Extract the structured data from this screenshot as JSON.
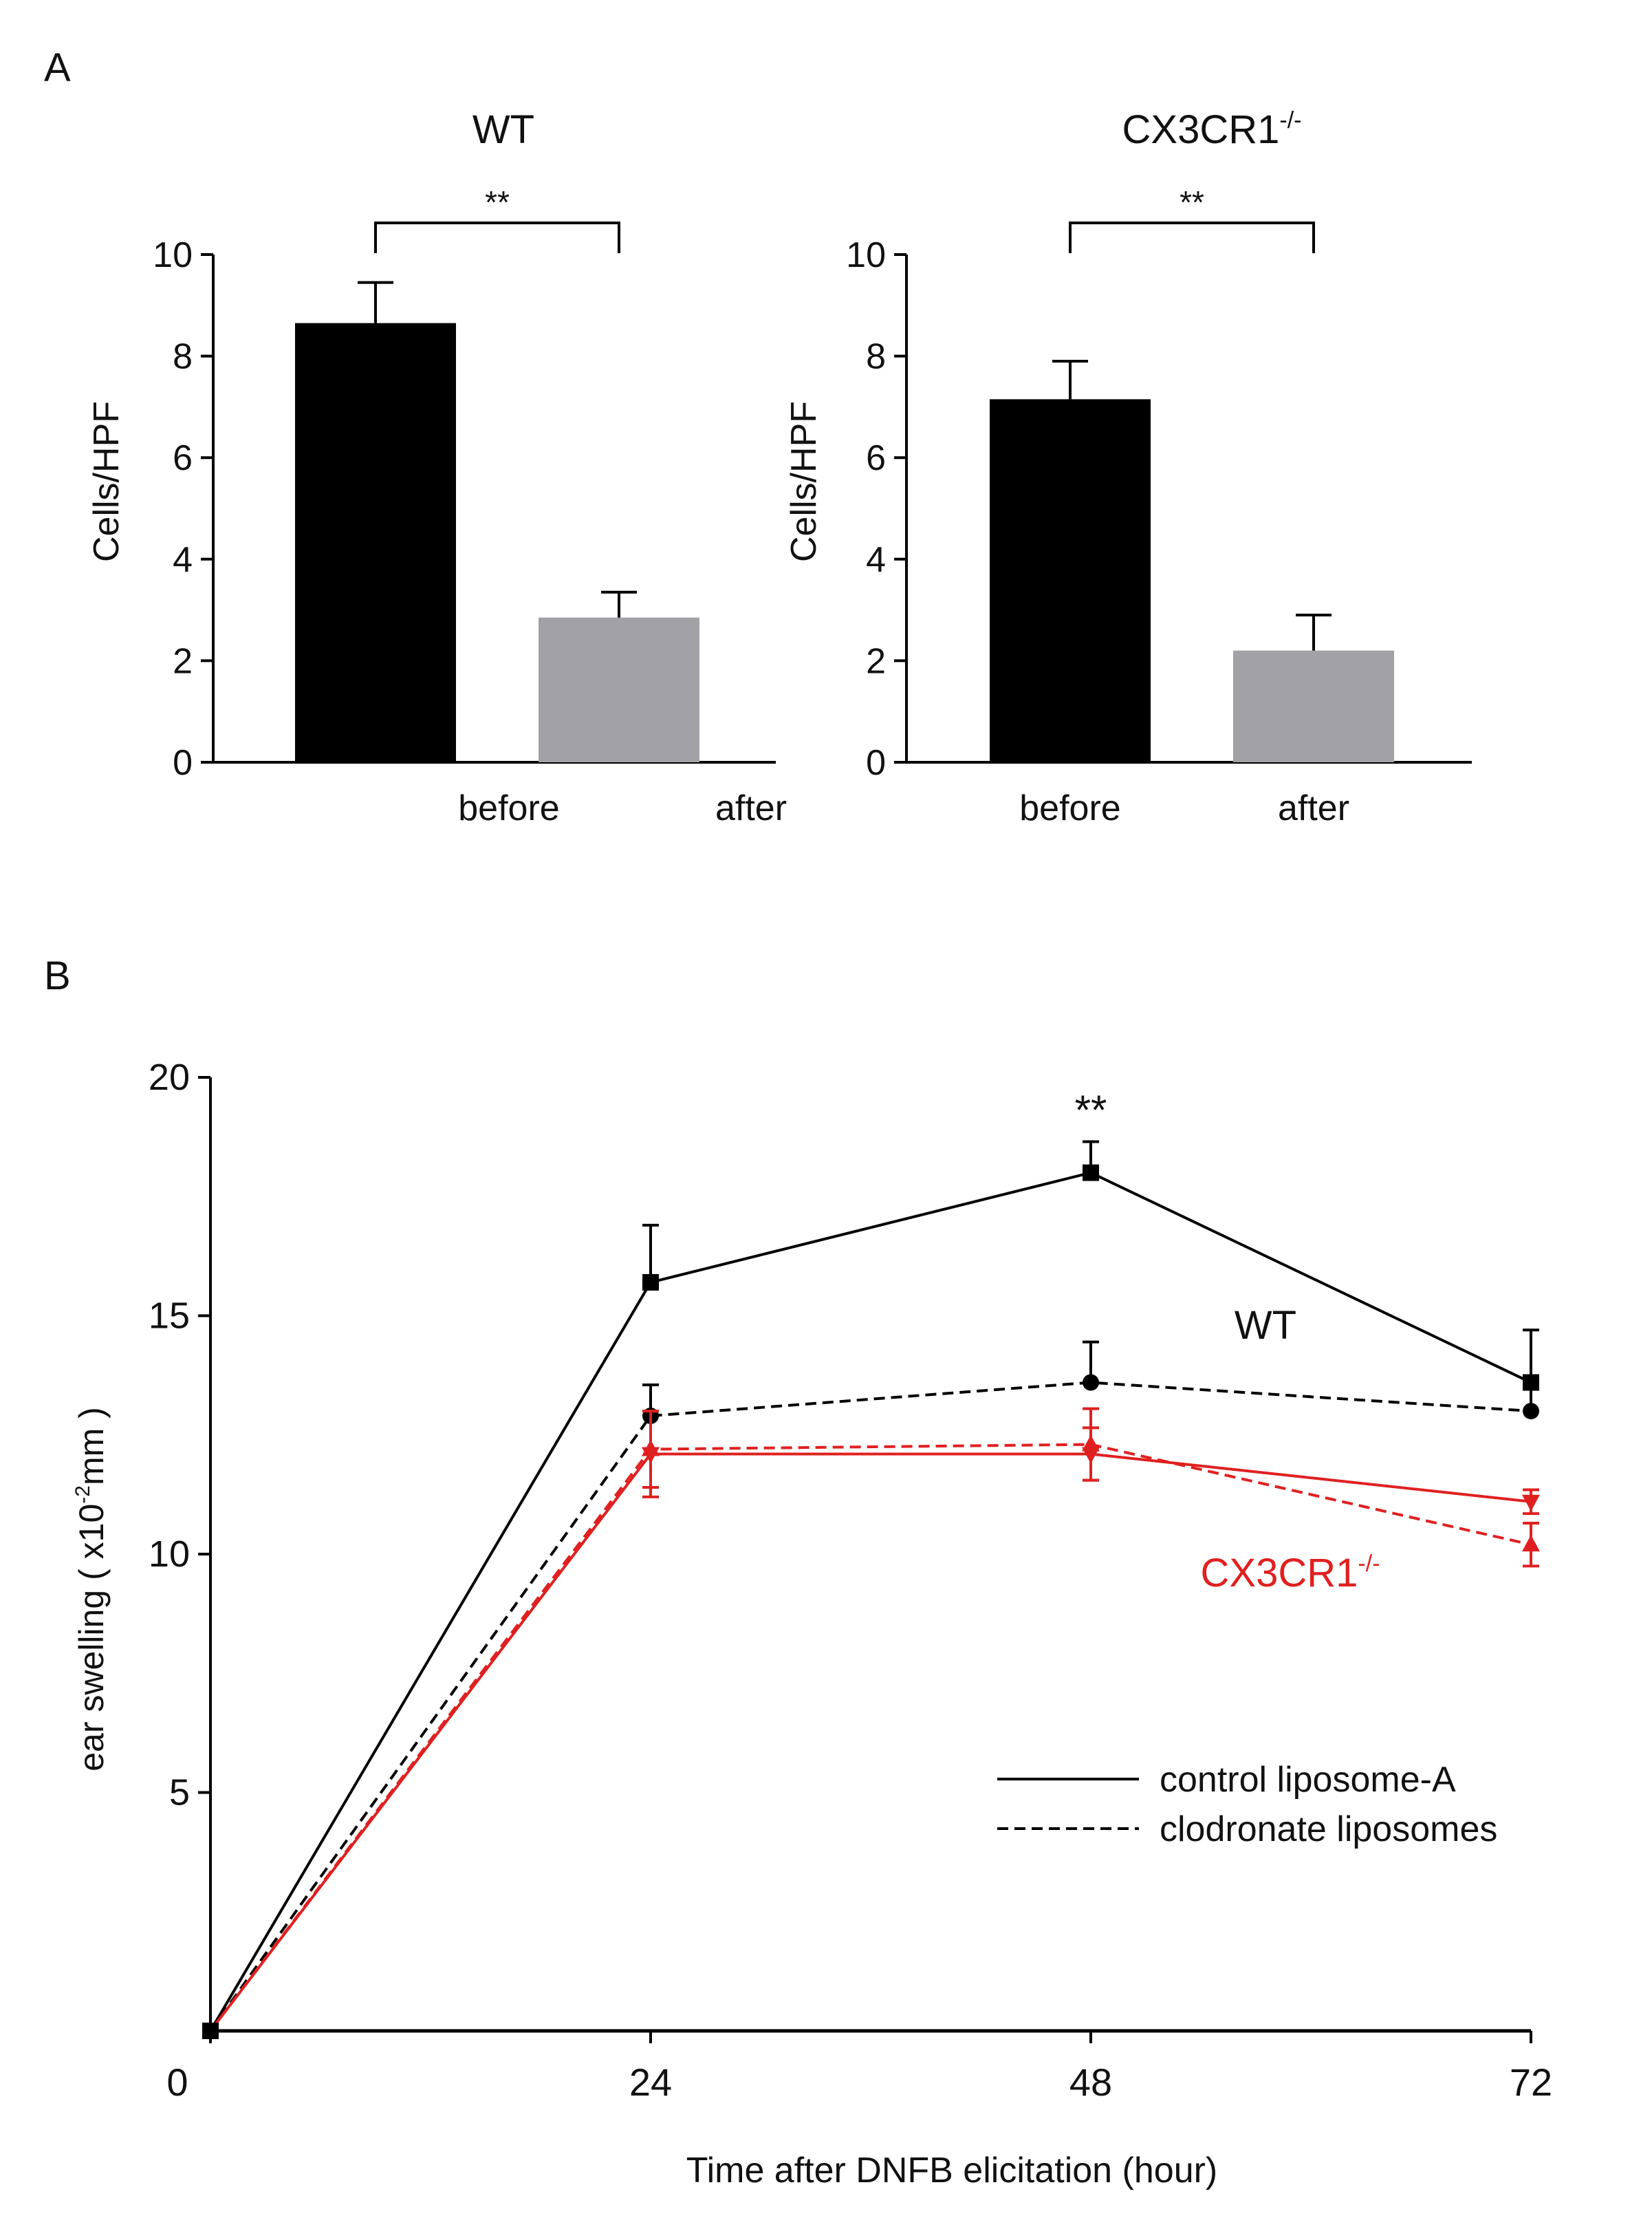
{
  "panels": {
    "A": {
      "letter": "A"
    },
    "B": {
      "letter": "B"
    }
  },
  "chart_data": [
    {
      "type": "bar",
      "panel": "A",
      "title": "WT",
      "title_superscript": "",
      "ylabel": "Cells/HPF",
      "ylim": [
        0,
        10
      ],
      "yticks": [
        "0",
        "2",
        "4",
        "6",
        "8",
        "10"
      ],
      "categories": [
        "before",
        "after"
      ],
      "values": [
        8.65,
        2.85
      ],
      "errors": [
        0.8,
        0.5
      ],
      "bar_colors": [
        "#000000",
        "#a2a2a6"
      ],
      "significance": "**"
    },
    {
      "type": "bar",
      "panel": "A",
      "title": "CX3CR1",
      "title_superscript": "-/-",
      "ylabel": "Cells/HPF",
      "ylim": [
        0,
        10
      ],
      "yticks": [
        "0",
        "2",
        "4",
        "6",
        "8",
        "10"
      ],
      "categories": [
        "before",
        "after"
      ],
      "values": [
        7.15,
        2.2
      ],
      "errors": [
        0.75,
        0.7
      ],
      "bar_colors": [
        "#000000",
        "#a2a2a6"
      ],
      "significance": "**"
    },
    {
      "type": "line",
      "panel": "B",
      "xlabel": "Time after DNFB elicitation (hour)",
      "ylabel_pre": "ear swelling ( x10",
      "ylabel_sup": "-2",
      "ylabel_post": "mm )",
      "xlim": [
        0,
        72
      ],
      "ylim": [
        0,
        20
      ],
      "xticks": [
        "0",
        "24",
        "48",
        "72"
      ],
      "yticks": [
        "5",
        "10",
        "15",
        "20"
      ],
      "x": [
        0,
        24,
        48,
        72
      ],
      "series": [
        {
          "group": "WT",
          "treatment": "control liposome-A",
          "values": [
            0,
            15.7,
            18.0,
            13.6
          ],
          "errors": [
            0,
            1.2,
            0.65,
            1.1
          ],
          "color": "#000000",
          "dash": "solid",
          "marker": "square"
        },
        {
          "group": "WT",
          "treatment": "clodronate liposomes",
          "values": [
            0,
            12.9,
            13.6,
            13.0
          ],
          "errors": [
            0,
            0.65,
            0.85,
            0.5
          ],
          "color": "#000000",
          "dash": "dashed",
          "marker": "circle"
        },
        {
          "group": "CX3CR1-/-",
          "treatment": "control liposome-A",
          "values": [
            0,
            12.1,
            12.1,
            11.1
          ],
          "errors": [
            0,
            0.9,
            0.55,
            0.25
          ],
          "color": "#e02020",
          "dash": "solid",
          "marker": "triangle-down"
        },
        {
          "group": "CX3CR1-/-",
          "treatment": "clodronate liposomes",
          "values": [
            0,
            12.2,
            12.3,
            10.2
          ],
          "errors": [
            0,
            0.8,
            0.75,
            0.45
          ],
          "color": "#e02020",
          "dash": "dashed",
          "marker": "triangle-up"
        }
      ],
      "annotations": {
        "significance": {
          "text": "**",
          "x": 48
        },
        "wt_label": "WT",
        "ko_label": "CX3CR1",
        "ko_label_superscript": "-/-"
      },
      "legend": {
        "position": "lower-right",
        "entries": [
          {
            "label": "control liposome-A",
            "dash": "solid"
          },
          {
            "label": "clodronate liposomes",
            "dash": "dashed"
          }
        ]
      }
    }
  ]
}
